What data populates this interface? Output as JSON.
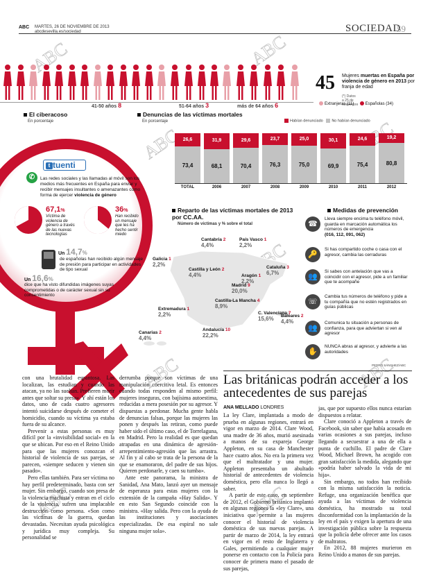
{
  "header": {
    "paper": "ABC",
    "date": "MARTES, 26 DE NOVIEMBRE DE 2013",
    "url": "abcdesevilla.es/sociedad",
    "section": "SOCIEDAD",
    "page": "59"
  },
  "victims": {
    "groups": [
      {
        "label": "41-50 años",
        "count": "8"
      },
      {
        "label": "51-64 años",
        "count": "3"
      },
      {
        "label": "más de 64 años",
        "count": "6"
      }
    ],
    "total": "45",
    "headline_pre": "Mujeres ",
    "headline_bold": "muertas en España por violencia de género en 2013",
    "headline_post": " por franja de edad",
    "note": "(*) Datos a 25 de noviembre",
    "legend": [
      {
        "label": "Extranjeras (11)",
        "color": "#e8a0a8"
      },
      {
        "label": "Españolas (34)",
        "color": "#c8102e"
      }
    ]
  },
  "cyber": {
    "title": "El ciberacoso",
    "subtitle": "En porcentaje",
    "brand": "tuenti",
    "intro": "Las redes sociales y las llamadas al móvil son los medios más frecuentes en España para enviar y recibir mensajes insultantes o amenazantes como forma de ejercer ",
    "intro_bold": "violencia de género",
    "stat1": "67,1",
    "stat1_unit": "%",
    "stat1_text": "Víctima de violencia de género a través de las nuevas tecnologías",
    "stat2": "36",
    "stat2_unit": "%",
    "stat2_text": "Han recibido un mensaje que les ha hecho sentir miedo",
    "stat3_pre": "Un ",
    "stat3": "14,7",
    "stat3_unit": "%",
    "stat3_text": "de españolas han recibido algún mensaje de presión para participar en actividades de tipo sexual",
    "stat4_pre": "Un ",
    "stat4": "16,6",
    "stat4_unit": "%",
    "stat4_text": "dice que ha visto difundidas imágenes suyas comprometidas o de carácter sexual sin su consentimiento"
  },
  "denuncias": {
    "title": "Denuncias de las víctimas mortales",
    "subtitle": "En porcentaje",
    "legend_a": "Habían denunciado",
    "legend_b": "No habían denunciado",
    "total_label": "TOTAL"
  },
  "chart_data": {
    "type": "bar",
    "title": "Denuncias de las víctimas mortales",
    "ylabel": "En porcentaje",
    "categories": [
      "TOTAL",
      "2006",
      "2007",
      "2008",
      "2009",
      "2010",
      "2011",
      "2012"
    ],
    "series": [
      {
        "name": "Habían denunciado",
        "values": [
          26.6,
          31.9,
          29.6,
          23.7,
          25.0,
          30.1,
          24.6,
          19.2
        ]
      },
      {
        "name": "No habían denunciado",
        "values": [
          73.4,
          68.1,
          70.4,
          76.3,
          75.0,
          69.9,
          75.4,
          80.8
        ]
      }
    ],
    "ylim": [
      0,
      100
    ]
  },
  "reparto": {
    "title": "Reparto de las víctimas mortales de 2013 por CC.AA.",
    "subtitle": "Número de víctimas y % sobre el total",
    "regions": [
      {
        "name": "Cantabria",
        "n": "2",
        "p": "4,4%"
      },
      {
        "name": "País Vasco",
        "n": "1",
        "p": "2,2%"
      },
      {
        "name": "Galicia",
        "n": "1",
        "p": "2,2%"
      },
      {
        "name": "Castilla y León",
        "n": "2",
        "p": "4,4%"
      },
      {
        "name": "Cataluña",
        "n": "3",
        "p": "6,7%"
      },
      {
        "name": "Aragón",
        "n": "1",
        "p": "2,2%"
      },
      {
        "name": "Madrid",
        "n": "9",
        "p": "20,0%"
      },
      {
        "name": "Castilla-La Mancha",
        "n": "4",
        "p": "8,9%"
      },
      {
        "name": "Extremadura",
        "n": "1",
        "p": "2,2%"
      },
      {
        "name": "C. Valenciana",
        "n": "7",
        "p": "15,6%"
      },
      {
        "name": "Baleares",
        "n": "2",
        "p": "4,4%"
      },
      {
        "name": "Andalucía",
        "n": "10",
        "p": "22,2%"
      },
      {
        "name": "Canarias",
        "n": "2",
        "p": "4,4%"
      }
    ],
    "credit": "PEDRO SÁNCHEZ/ABC"
  },
  "medidas": {
    "title": "Medidas de prevención",
    "items": [
      "Lleva siempre encima tu teléfono móvil, guarda en marcación automática los números de emergencia",
      "Si has compartido coche o casa con el agresor, cambia las cerraduras",
      "Si sabes con antelación que vas a coincidir con el agresor, pide a un familiar que te acompañe",
      "Cambia tus números de teléfono y pide a tu compañía que no estén registrados en guías públicas",
      "Comunica tu situación a personas de confianza, para que adviertan si ven al agresor",
      "NUNCA abras al agresor, y advierte a las autoridades"
    ],
    "phones": "(016, 112, 091, 062)"
  },
  "article": {
    "headline": "Las británicas podrán acceder a los antecedentes de sus parejas",
    "byline": "ANA MELLADO",
    "place": "LONDRES",
    "col1": "con una brutalidad espantosa. Las localizan, las estudian y cuando las atacan, ya no las sueltan. Prefieren morir antes que soltar su presa». Y ahí están los datos, uno de cada cuatro agresores intentó suicidarse después de cometer el homicidio, cuando su víctima ya estaba fuera de su alcance.",
    "col1b": "Prevenir a estas personas es muy difícil por la «invisibilidad social» en la que se ubican. Por eso en el Reino Unido para que las mujeres conozcan el historial de violencia de sus parejas, se parecen, «siempre seducen y vienen sin pasado».",
    "col1c": "Pero ellas también. Para ser víctima no hay perfil predeterminado, basta con ser mujer. Sin embargo, cuando son presa de la violencia machista y entran en el ciclo de la violencia, sufren una implacable destrucción como persona. «Son como las víctimas de la guerra, quedan devastadas. Necesitan ayuda psicológica y jurídica muy compleja. Su personalidad se",
    "col2": "derrumba porque son víctimas de una manipulación coercitiva letal. Es entonces cuando todas responden al mismo perfil: mujeres inseguras, con bajísima autoestima, reducidas a mera posesión por su agresor. Y dispuestas a perdonar. Mucha gente habla de denuncias falsas, porque las mujeres las ponen y después las retiran, como puede haber sido el último caso, el de Torrelaguna, en Madrid. Pero la realidad es que quedan atrapadas en una dinámica de agresión-arrepentimiento-agresión que las arrastra. Al fin y al cabo se trata de la persona de la que se enamoraron, del padre de sus hijos. Quieren perdonarle, y caen su tumba».",
    "col2b": "Ante este panorama, la ministra de Sanidad, Ana Mato, lanzó ayer un mensaje de esperanza para estas mujeres con la extensión de la campaña «Hay Salida». Y en esto San Segundo coincide con la ministra. «Hay salida. Pero con la ayuda de las instituciones y asociaciones especializadas. De esa espiral no sale ninguna mujer sola».",
    "col3": "La ley Clare, implantada a modo de prueba en algunas regiones, entrará en vigor en marzo de 2014. Clare Wood, una madre de 36 años, murió asesinada a manos de su expareja George Appleton, en su casa de Manchester hace cuatro años. No era la primera vez que el maltratador y una mujer. Appleton presentaba un abultado historial de antecedentes de violencia doméstica, pero ella nunca lo llegó a saber.",
    "col3b": "A partir de este caso, en septiembre de 2012, el Gobierno británico implantó en algunas regiones la «ley Clare», una iniciativa que permite a las mujeres conocer el historial de violencia doméstica de sus nuevas parejas. A partir de marzo de 2014, la ley entrará en vigor en el resto de Inglaterra y Gales, permitiendo a cualquier mujer ponerse en contacto con la Policía para conocer de primera mano el pasado de sus parejas,",
    "col4": "jas, que por supuesto ellos nunca estarían dispuestos a relatar.",
    "col4b": "Clare conoció a Appleton a través de Facebook, sin saber que había acosado en varias ocasiones a sus parejas, incluso llegando a secuestrar a una de ella a punta de cuchillo. El padre de Clare Wood, Michael Brown, ha acogido con gran satisfacción la medida, alegando que «podría haber salvado la vida de mi hija».",
    "col4c": "Sin embargo, no todos han recibido con la misma satisfacción la noticia. Refuge, una organización benéfica que ayuda a las víctimas de violencia doméstica, ha mostrado su total disconformidad con la implantación de la ley en el país y exigen la apertura de una investigación pública sobre la respuesta que la policía debe ofrecer ante los casos de maltratos.",
    "col4d": "En 2012, 88 mujeres murieron en Reino Unido a manos de sus parejas."
  },
  "watermark": "ABC"
}
